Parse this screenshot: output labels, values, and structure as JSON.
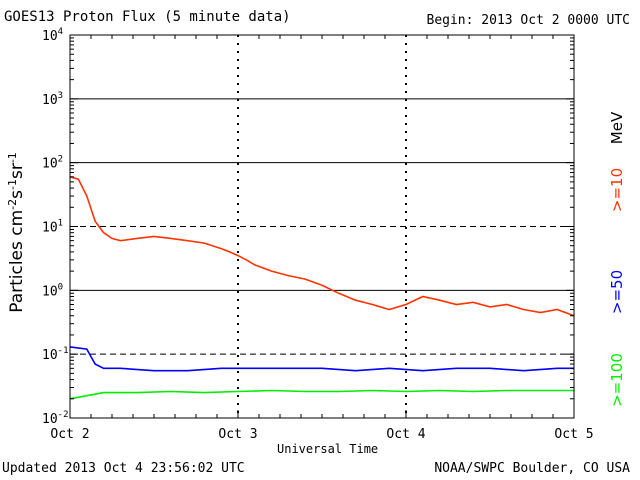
{
  "header": {
    "title": "GOES13 Proton Flux (5 minute data)",
    "begin": "Begin: 2013 Oct 2 0000 UTC"
  },
  "footer": {
    "updated": "Updated 2013 Oct  4 23:56:02 UTC",
    "source": "NOAA/SWPC Boulder, CO USA"
  },
  "chart_data": {
    "type": "line",
    "title": "GOES13 Proton Flux (5 minute data)",
    "xlabel": "Universal Time",
    "ylabel": "Particles cm-2s-1sr-1",
    "y_scale": "log",
    "ylim": [
      0.01,
      10000
    ],
    "xlim": [
      0,
      3
    ],
    "x_tick_labels": [
      "Oct 2",
      "Oct 3",
      "Oct 4",
      "Oct 5"
    ],
    "y_tick_exponents": [
      "-2",
      "-1",
      "0",
      "1",
      "2",
      "3",
      "4"
    ],
    "energy_unit": "MeV",
    "grid": true,
    "series": [
      {
        "name": ">=10",
        "color": "#ff3300",
        "x": [
          0,
          0.05,
          0.1,
          0.15,
          0.2,
          0.25,
          0.3,
          0.4,
          0.5,
          0.6,
          0.7,
          0.8,
          0.9,
          0.95,
          1.0,
          1.05,
          1.1,
          1.2,
          1.3,
          1.4,
          1.5,
          1.6,
          1.7,
          1.8,
          1.9,
          2.0,
          2.1,
          2.2,
          2.3,
          2.4,
          2.5,
          2.6,
          2.7,
          2.8,
          2.9,
          3.0
        ],
        "values": [
          60,
          55,
          30,
          12,
          8,
          6.5,
          6,
          6.5,
          7,
          6.5,
          6,
          5.5,
          4.5,
          4,
          3.5,
          3.0,
          2.5,
          2.0,
          1.7,
          1.5,
          1.2,
          0.9,
          0.7,
          0.6,
          0.5,
          0.6,
          0.8,
          0.7,
          0.6,
          0.65,
          0.55,
          0.6,
          0.5,
          0.45,
          0.5,
          0.4
        ]
      },
      {
        "name": ">=50",
        "color": "#0000ff",
        "x": [
          0,
          0.1,
          0.15,
          0.2,
          0.3,
          0.5,
          0.7,
          0.9,
          1.1,
          1.3,
          1.5,
          1.7,
          1.9,
          2.1,
          2.3,
          2.5,
          2.7,
          2.9,
          3.0
        ],
        "values": [
          0.13,
          0.12,
          0.07,
          0.06,
          0.06,
          0.055,
          0.055,
          0.06,
          0.06,
          0.06,
          0.06,
          0.055,
          0.06,
          0.055,
          0.06,
          0.06,
          0.055,
          0.06,
          0.06
        ]
      },
      {
        "name": ">=100",
        "color": "#00ee00",
        "x": [
          0,
          0.2,
          0.4,
          0.6,
          0.8,
          1.0,
          1.2,
          1.4,
          1.6,
          1.8,
          2.0,
          2.2,
          2.4,
          2.6,
          2.8,
          3.0
        ],
        "values": [
          0.02,
          0.025,
          0.025,
          0.026,
          0.025,
          0.026,
          0.027,
          0.026,
          0.026,
          0.027,
          0.026,
          0.027,
          0.026,
          0.027,
          0.027,
          0.027
        ]
      }
    ]
  }
}
